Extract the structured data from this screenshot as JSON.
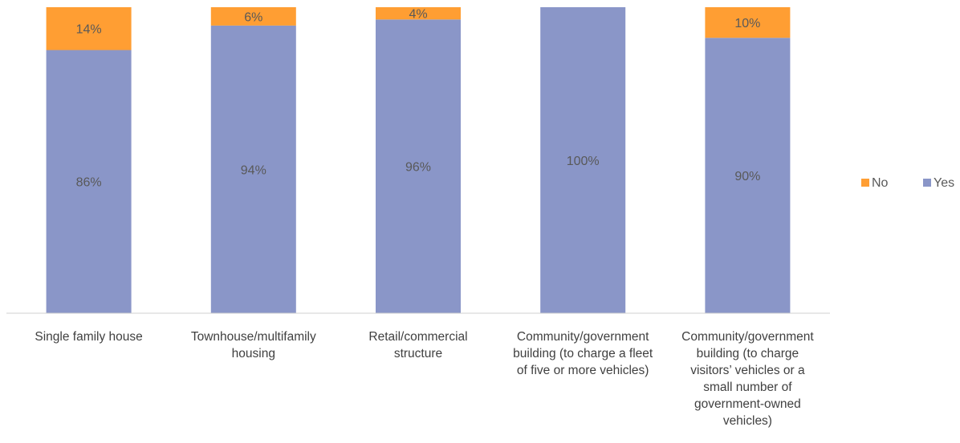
{
  "chart_data": {
    "type": "bar",
    "stacked": true,
    "ylim": [
      0,
      100
    ],
    "grid": false,
    "legend_position": "right",
    "categories": [
      [
        "Single family house"
      ],
      [
        "Townhouse/multifamily",
        "housing"
      ],
      [
        "Retail/commercial",
        "structure"
      ],
      [
        "Community/government",
        "building (to charge a fleet",
        "of five or more vehicles)"
      ],
      [
        "Community/government",
        "building (to charge",
        "visitors’ vehicles or a",
        "small number of",
        "government-owned",
        "vehicles)"
      ]
    ],
    "series": [
      {
        "name": "Yes",
        "color": "#8A96C8",
        "values": [
          86,
          94,
          96,
          100,
          90
        ],
        "labels": [
          "86%",
          "94%",
          "96%",
          "100%",
          "90%"
        ]
      },
      {
        "name": "No",
        "color": "#FF9E33",
        "values": [
          14,
          6,
          4,
          0,
          10
        ],
        "labels": [
          "14%",
          "6%",
          "4%",
          "",
          "10%"
        ]
      }
    ],
    "legend_order": [
      "No",
      "Yes"
    ]
  }
}
